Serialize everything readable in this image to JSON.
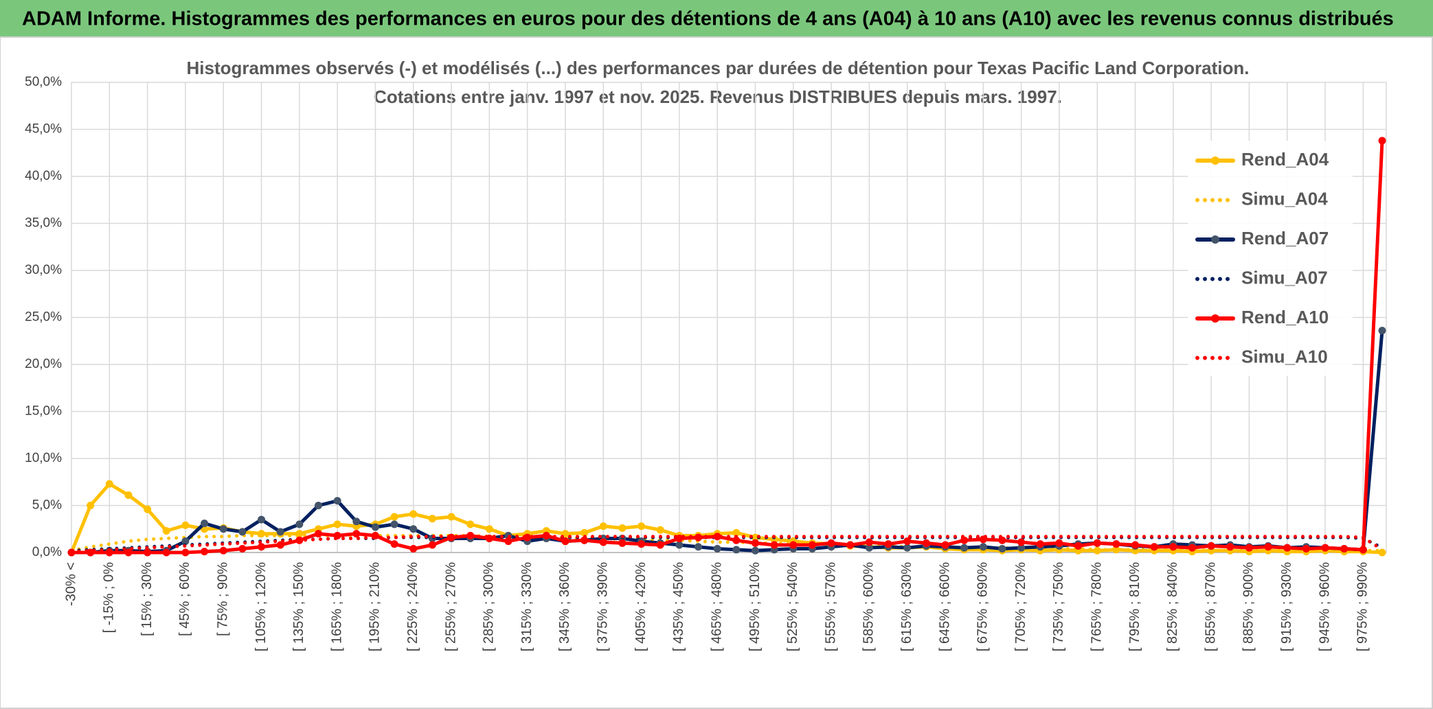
{
  "header": {
    "title": "ADAM Informe. Histogrammes des performances en euros pour des détentions de 4 ans (A04) à 10 ans (A10) avec les revenus connus distribués"
  },
  "chart_data": {
    "type": "line",
    "title": "Histogrammes observés (-) et modélisés (...) des performances par durées de détention pour Texas Pacific Land Corporation.",
    "subtitle": "Cotations entre janv. 1997 et nov. 2025. Revenus DISTRIBUES depuis mars. 1997.",
    "categories": [
      "-30% <",
      null,
      "[ -15% ; 0%",
      null,
      "[ 15% ; 30%",
      null,
      "[ 45% ; 60%",
      null,
      "[ 75% ; 90%",
      null,
      "[ 105% ; 120%",
      null,
      "[ 135% ; 150%",
      null,
      "[ 165% ; 180%",
      null,
      "[ 195% ; 210%",
      null,
      "[ 225% ; 240%",
      null,
      "[ 255% ; 270%",
      null,
      "[ 285% ; 300%",
      null,
      "[ 315% ; 330%",
      null,
      "[ 345% ; 360%",
      null,
      "[ 375% ; 390%",
      null,
      "[ 405% ; 420%",
      null,
      "[ 435% ; 450%",
      null,
      "[ 465% ; 480%",
      null,
      "[ 495% ; 510%",
      null,
      "[ 525% ; 540%",
      null,
      "[ 555% ; 570%",
      null,
      "[ 585% ; 600%",
      null,
      "[ 615% ; 630%",
      null,
      "[ 645% ; 660%",
      null,
      "[ 675% ; 690%",
      null,
      "[ 705% ; 720%",
      null,
      "[ 735% ; 750%",
      null,
      "[ 765% ; 780%",
      null,
      "[ 795% ; 810%",
      null,
      "[ 825% ; 840%",
      null,
      "[ 855% ; 870%",
      null,
      "[ 885% ; 900%",
      null,
      "[ 915% ; 930%",
      null,
      "[ 945% ; 960%",
      null,
      "[ 975% ; 990%",
      null
    ],
    "ylim": [
      0,
      50
    ],
    "yticks": [
      {
        "value": 0,
        "label": "0,0%"
      },
      {
        "value": 5,
        "label": "5,0%"
      },
      {
        "value": 10,
        "label": "10,0%"
      },
      {
        "value": 15,
        "label": "15,0%"
      },
      {
        "value": 20,
        "label": "20,0%"
      },
      {
        "value": 25,
        "label": "25,0%"
      },
      {
        "value": 30,
        "label": "30,0%"
      },
      {
        "value": 35,
        "label": "35,0%"
      },
      {
        "value": 40,
        "label": "40,0%"
      },
      {
        "value": 45,
        "label": "45,0%"
      },
      {
        "value": 50,
        "label": "50,0%"
      }
    ],
    "grid": true,
    "legend": "right",
    "series": [
      {
        "name": "Rend_A04",
        "color": "#ffc000",
        "style": "solid",
        "markers": true,
        "values": [
          0,
          5.0,
          7.3,
          6.1,
          4.6,
          2.3,
          2.9,
          2.5,
          2.6,
          2.2,
          2.0,
          2.0,
          2.0,
          2.5,
          3.0,
          2.8,
          3.0,
          3.8,
          4.1,
          3.6,
          3.8,
          3.0,
          2.5,
          1.8,
          2.0,
          2.3,
          2.0,
          2.1,
          2.8,
          2.6,
          2.8,
          2.4,
          1.8,
          1.8,
          2.0,
          2.1,
          1.6,
          1.4,
          1.2,
          1.0,
          0.9,
          0.7,
          0.6,
          0.5,
          0.5,
          0.6,
          0.4,
          0.3,
          0.3,
          0.2,
          0.3,
          0.2,
          0.3,
          0.2,
          0.2,
          0.3,
          0.2,
          0.2,
          0.2,
          0.1,
          0.2,
          0.2,
          0.1,
          0.2,
          0.1,
          0.1,
          0.2,
          0.1,
          0.1,
          0.0
        ]
      },
      {
        "name": "Simu_A04",
        "color": "#ffc000",
        "style": "dotted",
        "markers": false,
        "values": [
          0.2,
          0.6,
          0.9,
          1.2,
          1.4,
          1.5,
          1.6,
          1.7,
          1.7,
          1.8,
          1.8,
          1.8,
          1.8,
          1.8,
          1.8,
          1.8,
          1.8,
          1.8,
          1.8,
          1.8,
          1.8,
          1.8,
          1.7,
          1.7,
          1.7,
          1.6,
          1.6,
          1.5,
          1.5,
          1.4,
          1.4,
          1.3,
          1.3,
          1.2,
          1.1,
          1.1,
          1.0,
          1.0,
          0.9,
          0.9,
          0.8,
          0.8,
          0.7,
          0.7,
          0.6,
          0.6,
          0.6,
          0.5,
          0.5,
          0.5,
          0.4,
          0.4,
          0.4,
          0.4,
          0.3,
          0.3,
          0.3,
          0.3,
          0.3,
          0.3,
          0.2,
          0.2,
          0.2,
          0.2,
          0.2,
          0.2,
          0.2,
          0.2,
          0.2,
          0.2
        ]
      },
      {
        "name": "Rend_A07",
        "color": "#002060",
        "marker_color": "#44546a",
        "style": "solid",
        "markers": true,
        "values": [
          0,
          0,
          0.2,
          0.2,
          0.1,
          0.2,
          1.2,
          3.1,
          2.5,
          2.2,
          3.5,
          2.2,
          3.0,
          5.0,
          5.5,
          3.3,
          2.7,
          3.0,
          2.5,
          1.5,
          1.5,
          1.5,
          1.5,
          1.8,
          1.2,
          1.5,
          1.2,
          1.3,
          1.5,
          1.5,
          1.2,
          1.0,
          0.8,
          0.6,
          0.4,
          0.3,
          0.2,
          0.3,
          0.4,
          0.4,
          0.6,
          0.8,
          0.5,
          0.6,
          0.5,
          0.7,
          0.6,
          0.5,
          0.6,
          0.4,
          0.5,
          0.6,
          0.7,
          0.9,
          1.0,
          0.9,
          0.7,
          0.6,
          0.9,
          0.8,
          0.7,
          0.8,
          0.6,
          0.7,
          0.5,
          0.6,
          0.5,
          0.4,
          0.3,
          23.6
        ]
      },
      {
        "name": "Simu_A07",
        "color": "#002060",
        "style": "dotted",
        "markers": false,
        "values": [
          0.2,
          0.3,
          0.4,
          0.5,
          0.6,
          0.7,
          0.8,
          0.9,
          1.0,
          1.1,
          1.2,
          1.3,
          1.4,
          1.4,
          1.5,
          1.5,
          1.5,
          1.6,
          1.6,
          1.6,
          1.6,
          1.6,
          1.6,
          1.6,
          1.6,
          1.6,
          1.6,
          1.6,
          1.6,
          1.6,
          1.6,
          1.6,
          1.6,
          1.6,
          1.6,
          1.6,
          1.6,
          1.6,
          1.6,
          1.6,
          1.6,
          1.6,
          1.6,
          1.6,
          1.6,
          1.6,
          1.6,
          1.6,
          1.6,
          1.6,
          1.6,
          1.6,
          1.6,
          1.6,
          1.6,
          1.6,
          1.6,
          1.6,
          1.6,
          1.6,
          1.6,
          1.6,
          1.6,
          1.6,
          1.6,
          1.6,
          1.6,
          1.6,
          1.5,
          0.5
        ]
      },
      {
        "name": "Rend_A10",
        "color": "#ff0000",
        "style": "solid",
        "markers": true,
        "values": [
          0,
          0,
          0,
          0,
          0,
          0,
          0,
          0.1,
          0.2,
          0.4,
          0.6,
          0.8,
          1.3,
          2.0,
          1.8,
          2.0,
          1.8,
          0.9,
          0.4,
          0.8,
          1.6,
          1.8,
          1.5,
          1.2,
          1.6,
          1.8,
          1.2,
          1.3,
          1.1,
          1.0,
          0.9,
          0.8,
          1.5,
          1.6,
          1.7,
          1.3,
          1.0,
          0.8,
          0.8,
          0.8,
          1.0,
          0.8,
          1.1,
          0.9,
          1.2,
          1.0,
          0.8,
          1.3,
          1.4,
          1.3,
          1.1,
          0.9,
          1.0,
          0.7,
          1.0,
          0.9,
          0.8,
          0.6,
          0.6,
          0.5,
          0.7,
          0.6,
          0.5,
          0.6,
          0.5,
          0.4,
          0.5,
          0.4,
          0.3,
          43.8
        ]
      },
      {
        "name": "Simu_A10",
        "color": "#ff0000",
        "style": "dotted",
        "markers": false,
        "values": [
          0.1,
          0.2,
          0.3,
          0.4,
          0.5,
          0.6,
          0.7,
          0.8,
          0.9,
          1.0,
          1.1,
          1.2,
          1.3,
          1.4,
          1.5,
          1.5,
          1.6,
          1.6,
          1.7,
          1.7,
          1.7,
          1.7,
          1.7,
          1.7,
          1.7,
          1.7,
          1.7,
          1.7,
          1.7,
          1.7,
          1.7,
          1.7,
          1.7,
          1.7,
          1.7,
          1.7,
          1.7,
          1.7,
          1.7,
          1.7,
          1.7,
          1.7,
          1.7,
          1.7,
          1.7,
          1.7,
          1.7,
          1.7,
          1.7,
          1.7,
          1.7,
          1.7,
          1.7,
          1.7,
          1.7,
          1.7,
          1.7,
          1.7,
          1.7,
          1.7,
          1.7,
          1.7,
          1.7,
          1.7,
          1.7,
          1.7,
          1.7,
          1.7,
          1.6,
          0.3
        ]
      }
    ]
  }
}
